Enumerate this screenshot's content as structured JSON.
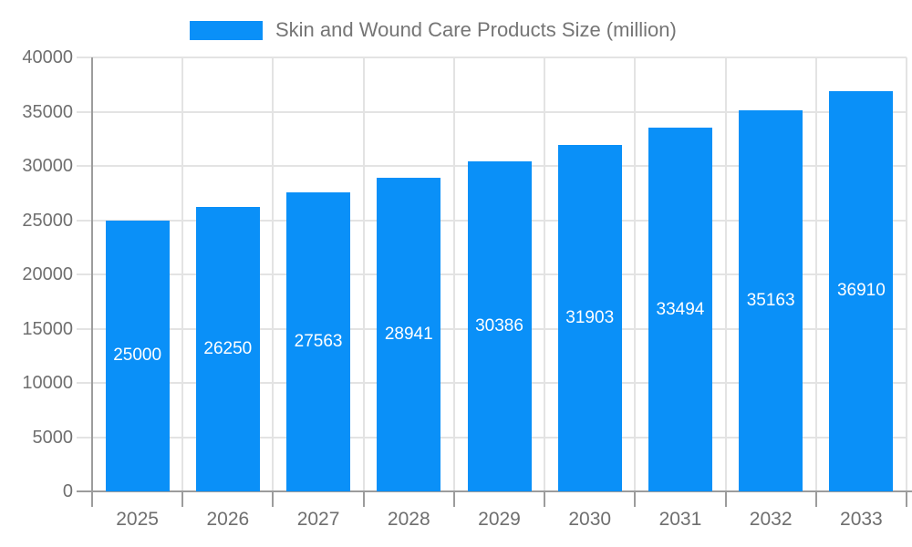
{
  "chart_data": {
    "type": "bar",
    "title": "Skin and Wound Care Products Size (million)",
    "legend_position": "top",
    "legend_entries": [
      "Skin and Wound Care Products Size (million)"
    ],
    "categories": [
      "2025",
      "2026",
      "2027",
      "2028",
      "2029",
      "2030",
      "2031",
      "2032",
      "2033"
    ],
    "series": [
      {
        "name": "Skin and Wound Care Products Size (million)",
        "values": [
          25000,
          26250,
          27563,
          28941,
          30386,
          31903,
          33494,
          35163,
          36910
        ]
      }
    ],
    "bar_labels": [
      "25000",
      "26250",
      "27563",
      "28941",
      "30386",
      "31903",
      "33494",
      "35163",
      "36910"
    ],
    "xlabel": "",
    "ylabel": "",
    "ylim": [
      0,
      40000
    ],
    "ytick_step": 5000,
    "ytick_labels": [
      "0",
      "5000",
      "10000",
      "15000",
      "20000",
      "25000",
      "30000",
      "35000",
      "40000"
    ],
    "grid": true,
    "colors": {
      "bar": "#0a90f8",
      "bar_label_text": "#ffffff",
      "gridline": "#e3e3e3",
      "axis_line": "#9c9c9c",
      "axis_text": "#6f6f6f",
      "title_text": "#757575",
      "background": "#ffffff"
    }
  }
}
